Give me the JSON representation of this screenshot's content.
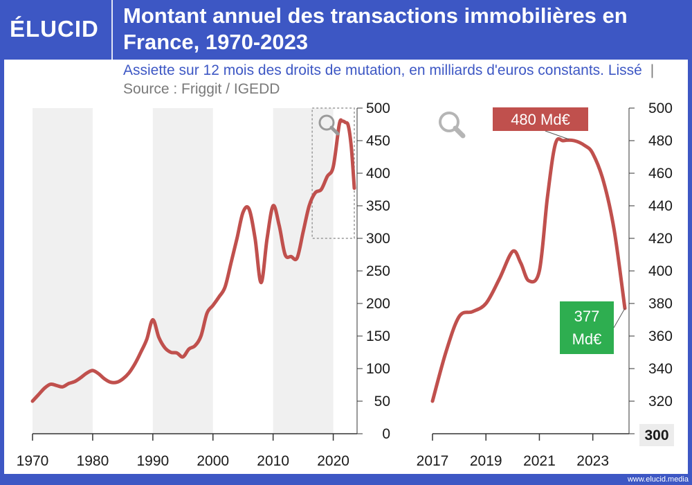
{
  "header": {
    "logo": "ÉLUCID",
    "title": "Montant annuel des transactions immobilières en France, 1970-2023"
  },
  "subtitle": {
    "main": "Assiette sur 12 mois des droits de mutation, en milliards d'euros constants. Lissé",
    "separator": "|",
    "source": "Source : Friggit / IGEDD"
  },
  "footer": {
    "url": "www.elucid.media"
  },
  "colors": {
    "brand": "#3d57c4",
    "line": "#c0504d",
    "peak_label": "#c0504d",
    "end_label": "#2eae50",
    "shade": "#f0f0f0"
  },
  "chart_data": [
    {
      "type": "line",
      "x_ticks": [
        "1970",
        "1980",
        "1990",
        "2000",
        "2010",
        "2020"
      ],
      "y_ticks": [
        "0",
        "50",
        "100",
        "150",
        "200",
        "250",
        "300",
        "350",
        "400",
        "450",
        "500"
      ],
      "xlim": [
        1970,
        2023.5
      ],
      "ylim": [
        0,
        500
      ],
      "y_axis_position": "right",
      "grid": false,
      "shaded_decades": [
        [
          1970,
          1980
        ],
        [
          1990,
          2000
        ],
        [
          2010,
          2020
        ]
      ],
      "zoom_box": {
        "x": [
          2016.5,
          2023.5
        ],
        "y": [
          300,
          500
        ]
      },
      "series": [
        {
          "x": [
            1970,
            1971,
            1972,
            1973,
            1974,
            1975,
            1976,
            1977,
            1978,
            1979,
            1980,
            1981,
            1982,
            1983,
            1984,
            1985,
            1986,
            1987,
            1988,
            1989,
            1990,
            1991,
            1992,
            1993,
            1994,
            1995,
            1996,
            1997,
            1998,
            1999,
            2000,
            2001,
            2002,
            2003,
            2004,
            2005,
            2006,
            2007,
            2008,
            2009,
            2010,
            2011,
            2012,
            2013,
            2014,
            2015,
            2016,
            2017,
            2018,
            2019,
            2020,
            2021,
            2021.5,
            2022,
            2022.5,
            2023,
            2023.5
          ],
          "values": [
            50,
            60,
            70,
            76,
            74,
            72,
            77,
            80,
            86,
            93,
            97,
            92,
            84,
            79,
            79,
            84,
            93,
            107,
            125,
            145,
            175,
            148,
            132,
            125,
            124,
            118,
            130,
            135,
            150,
            185,
            197,
            210,
            225,
            262,
            300,
            340,
            345,
            300,
            232,
            300,
            350,
            320,
            275,
            272,
            270,
            310,
            350,
            370,
            375,
            395,
            410,
            475,
            480,
            478,
            473,
            440,
            377
          ]
        }
      ]
    },
    {
      "type": "line",
      "x_ticks": [
        "2017",
        "2019",
        "2021",
        "2023"
      ],
      "y_ticks": [
        "300",
        "320",
        "340",
        "360",
        "380",
        "400",
        "420",
        "440",
        "460",
        "480",
        "500"
      ],
      "xlim": [
        2017,
        2024.2
      ],
      "ylim": [
        300,
        500
      ],
      "y_axis_position": "right",
      "grid": false,
      "annotations": [
        {
          "text": "480 Md€",
          "x": 2021.9,
          "y": 480,
          "color": "#c0504d"
        },
        {
          "text": "377 Md€",
          "lines": [
            "377",
            "Md€"
          ],
          "x": 2024.2,
          "y": 377,
          "color": "#2eae50"
        }
      ],
      "series": [
        {
          "x": [
            2017,
            2017.5,
            2018,
            2018.5,
            2019,
            2019.5,
            2020,
            2020.3,
            2020.6,
            2021,
            2021.3,
            2021.6,
            2021.9,
            2022.3,
            2022.7,
            2023,
            2023.4,
            2023.8,
            2024.2
          ],
          "values": [
            320,
            350,
            372,
            375,
            380,
            395,
            412,
            405,
            394,
            400,
            445,
            478,
            480,
            480,
            477,
            472,
            455,
            425,
            377
          ]
        }
      ]
    }
  ]
}
